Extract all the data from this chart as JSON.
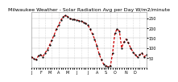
{
  "title": "Milwaukee Weather - Solar Radiation Avg per Day W/m2/minute",
  "background_color": "#ffffff",
  "plot_bg_color": "#ffffff",
  "line_color": "#cc0000",
  "marker_color": "#000000",
  "grid_color": "#bbbbbb",
  "ylim": [
    0,
    280
  ],
  "ytick_values": [
    50,
    100,
    150,
    200,
    250
  ],
  "ytick_labels": [
    "",
    "",
    "",
    "",
    ""
  ],
  "x_values": [
    0,
    1,
    2,
    3,
    4,
    5,
    6,
    7,
    8,
    9,
    10,
    11,
    12,
    13,
    14,
    15,
    16,
    17,
    18,
    19,
    20,
    21,
    22,
    23,
    24,
    25,
    26,
    27,
    28,
    29,
    30,
    31,
    32,
    33,
    34,
    35,
    36,
    37,
    38,
    39,
    40,
    41,
    42,
    43,
    44,
    45,
    46,
    47,
    48,
    49,
    50,
    51
  ],
  "y_values": [
    55,
    45,
    40,
    60,
    65,
    55,
    75,
    90,
    115,
    140,
    165,
    195,
    215,
    240,
    255,
    265,
    258,
    248,
    245,
    243,
    240,
    238,
    235,
    230,
    225,
    215,
    195,
    170,
    145,
    110,
    70,
    40,
    18,
    10,
    5,
    8,
    75,
    175,
    195,
    185,
    100,
    130,
    145,
    125,
    100,
    80,
    65,
    55,
    65,
    75,
    55,
    65
  ],
  "vline_positions": [
    12,
    25,
    38
  ],
  "num_points": 52,
  "xlim": [
    0,
    51
  ],
  "title_fontsize": 4.5,
  "tick_fontsize": 3.5,
  "linewidth": 0.9,
  "markersize": 1.2
}
